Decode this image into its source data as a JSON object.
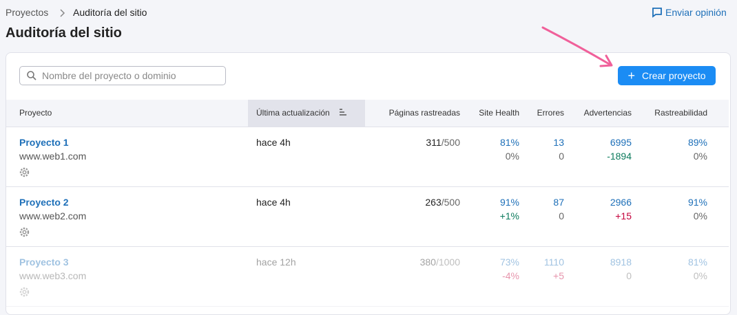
{
  "breadcrumb": [
    "Proyectos",
    "Auditoría del sitio"
  ],
  "feedback": "Enviar opinión",
  "title": "Auditoría del sitio",
  "search_placeholder": "Nombre del proyecto o dominio",
  "create_button": "Crear proyecto",
  "table": {
    "columns": [
      "Proyecto",
      "Última actualización",
      "Páginas rastreadas",
      "Site Health",
      "Errores",
      "Advertencias",
      "Rastreabilidad"
    ],
    "rows": [
      {
        "name": "Proyecto 1",
        "domain": "www.web1.com",
        "updated": "hace 4h",
        "pages": "311",
        "pages_limit": "/500",
        "site_health": "81%",
        "site_health_change": "0%",
        "errors": "13",
        "errors_change": "0",
        "warnings": "6995",
        "warnings_change": "-1894",
        "crawlability": "89%",
        "crawlability_change": "0%"
      },
      {
        "name": "Proyecto 2",
        "domain": "www.web2.com",
        "updated": "hace 4h",
        "pages": "263",
        "pages_limit": "/500",
        "site_health": "91%",
        "site_health_change": "+1%",
        "errors": "87",
        "errors_change": "0",
        "warnings": "2966",
        "warnings_change": "+15",
        "crawlability": "91%",
        "crawlability_change": "0%"
      },
      {
        "name": "Proyecto 3",
        "domain": "www.web3.com",
        "updated": "hace 12h",
        "pages": "380",
        "pages_limit": "/1000",
        "site_health": "73%",
        "site_health_change": "-4%",
        "errors": "1110",
        "errors_change": "+5",
        "warnings": "8918",
        "warnings_change": "0",
        "crawlability": "81%",
        "crawlability_change": "0%"
      }
    ]
  }
}
